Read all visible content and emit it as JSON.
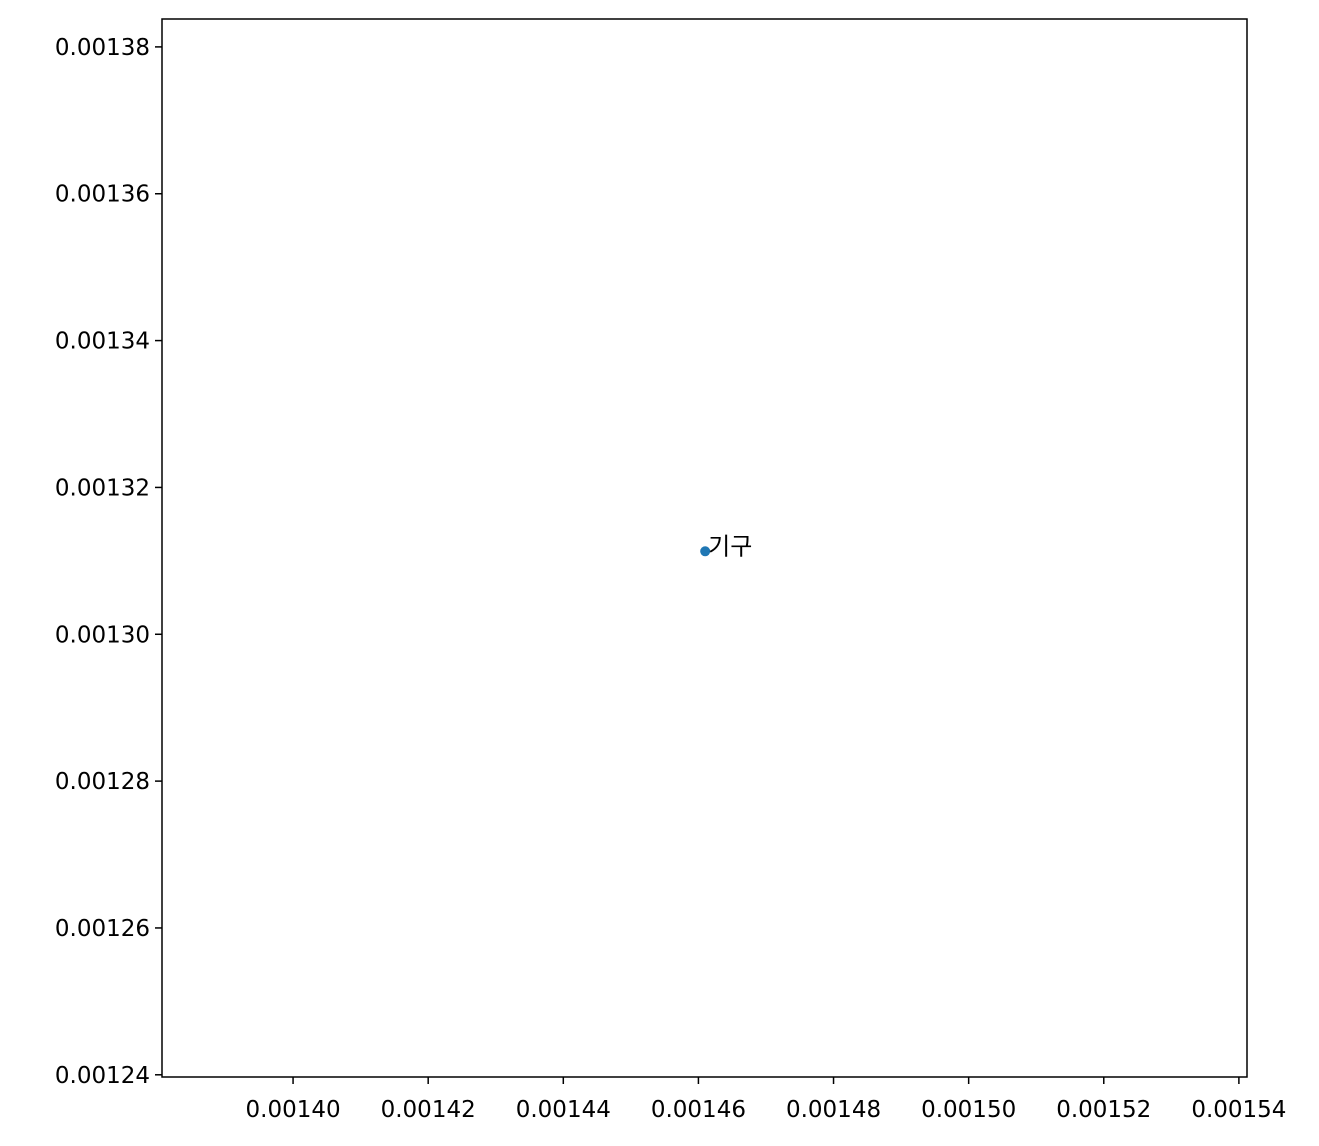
{
  "chart_data": {
    "type": "scatter",
    "title": "",
    "xlabel": "",
    "ylabel": "",
    "grid": false,
    "legend": "none",
    "xlim": [
      0.0013806,
      0.0015412
    ],
    "ylim": [
      0.0012397,
      0.0013838
    ],
    "x_ticks": [
      0.0014,
      0.00142,
      0.00144,
      0.00146,
      0.00148,
      0.0015,
      0.00152,
      0.00154
    ],
    "x_tick_labels": [
      "0.00140",
      "0.00142",
      "0.00144",
      "0.00146",
      "0.00148",
      "0.00150",
      "0.00152",
      "0.00154"
    ],
    "y_ticks": [
      0.00124,
      0.00126,
      0.00128,
      0.0013,
      0.00132,
      0.00134,
      0.00136,
      0.00138
    ],
    "y_tick_labels": [
      "0.00124",
      "0.00126",
      "0.00128",
      "0.00130",
      "0.00132",
      "0.00134",
      "0.00136",
      "0.00138"
    ],
    "points": [
      {
        "x": 0.001461,
        "y": 0.0013113,
        "label": "기구"
      }
    ],
    "colors": {
      "marker": "#1f77b4",
      "axis": "#000000",
      "text": "#000000"
    }
  }
}
